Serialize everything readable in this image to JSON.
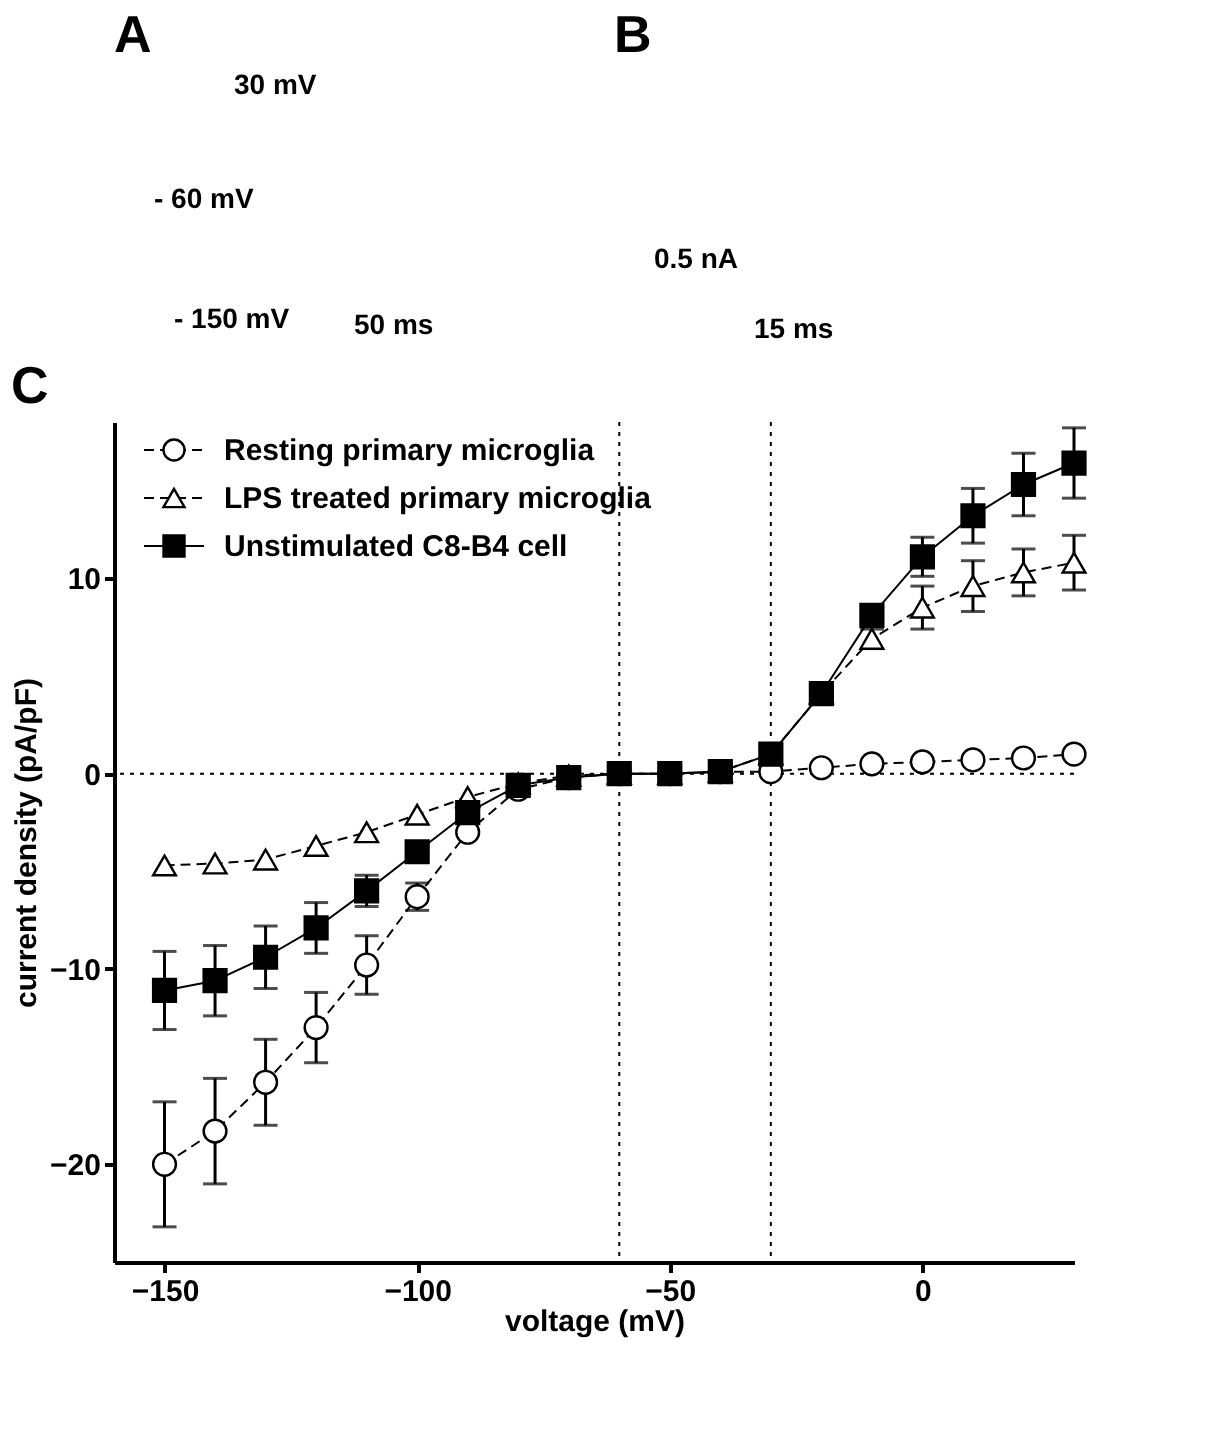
{
  "chart_data": [
    {
      "type": "other",
      "title": "A",
      "annotations": [
        "30 mV",
        "- 60 mV",
        "- 150 mV",
        "50 ms"
      ]
    },
    {
      "type": "other",
      "title": "B",
      "annotations": [
        "0.5 nA",
        "15 ms"
      ]
    },
    {
      "type": "line",
      "title": "C",
      "xlabel": "voltage (mV)",
      "ylabel": "current density (pA/pF)",
      "x": [
        -150,
        -140,
        -130,
        -120,
        -110,
        -100,
        -90,
        -80,
        -70,
        -60,
        -50,
        -40,
        -30,
        -20,
        -10,
        0,
        10,
        20,
        30
      ],
      "xlim": [
        -160,
        30
      ],
      "ylim": [
        -25,
        18
      ],
      "xticks": [
        -150,
        -100,
        -50,
        0
      ],
      "yticks": [
        -20,
        -10,
        0,
        10
      ],
      "grid": false,
      "legend": "top left",
      "ref_lines": [
        {
          "axis": "x",
          "value": -60,
          "line_style": "dotted"
        },
        {
          "axis": "x",
          "value": -30,
          "line_style": "dotted"
        },
        {
          "axis": "y",
          "value": 0,
          "line_style": "dotted"
        }
      ],
      "series": [
        {
          "name": "Resting primary microglia",
          "color": "#000000",
          "marker": "circle",
          "line_style": "dashed",
          "values": [
            -20,
            -18.3,
            -15.8,
            -13.0,
            -9.8,
            -6.3,
            -3.0,
            -0.8,
            -0.2,
            0,
            0,
            0.1,
            0.1,
            0.3,
            0.5,
            0.6,
            0.7,
            0.8,
            1.0
          ],
          "errors": [
            3.2,
            2.7,
            2.2,
            1.8,
            1.5,
            0.7,
            null,
            null,
            null,
            null,
            null,
            null,
            null,
            null,
            null,
            null,
            null,
            null,
            null
          ]
        },
        {
          "name": "LPS treated primary microglia",
          "color": "#000000",
          "marker": "triangle",
          "line_style": "dashed",
          "values": [
            -4.7,
            -4.6,
            -4.4,
            -3.7,
            -3.0,
            -2.1,
            -1.2,
            -0.5,
            -0.1,
            0,
            0,
            0.1,
            1.0,
            4.1,
            6.9,
            8.5,
            9.6,
            10.3,
            10.8
          ],
          "errors": [
            null,
            null,
            null,
            null,
            null,
            null,
            null,
            null,
            null,
            null,
            null,
            null,
            null,
            null,
            0.5,
            1.1,
            1.3,
            1.2,
            1.4
          ]
        },
        {
          "name": "Unstimulated C8-B4 cell",
          "color": "#000000",
          "marker": "square",
          "line_style": "solid",
          "values": [
            -11.1,
            -10.6,
            -9.4,
            -7.9,
            -6.0,
            -4.0,
            -2.0,
            -0.6,
            -0.2,
            0,
            0,
            0.1,
            1.0,
            4.1,
            8.1,
            11.1,
            13.2,
            14.8,
            15.9
          ],
          "errors": [
            2.0,
            1.8,
            1.6,
            1.3,
            0.8,
            0.3,
            null,
            null,
            null,
            null,
            null,
            null,
            null,
            null,
            null,
            1.0,
            1.4,
            1.6,
            1.8
          ]
        }
      ]
    }
  ]
}
